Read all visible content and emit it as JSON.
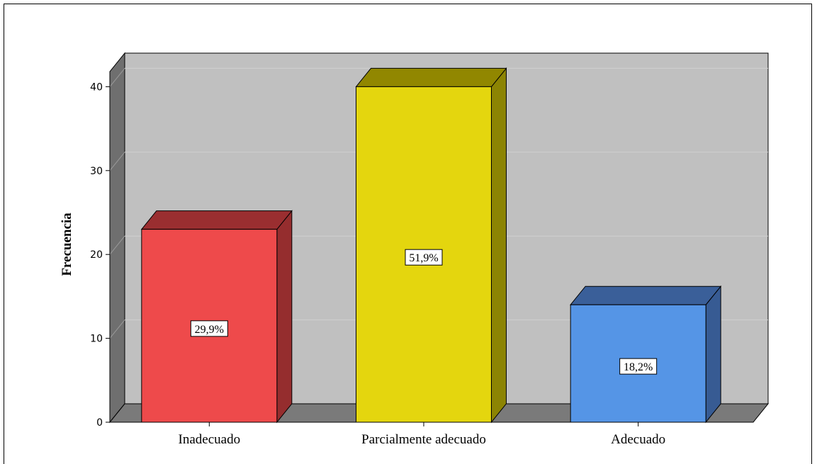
{
  "chart_data": {
    "type": "bar",
    "style": "3d",
    "categories": [
      "Inadecuado",
      "Parcialmente adecuado",
      "Adecuado"
    ],
    "values": [
      23,
      40,
      14
    ],
    "data_labels": [
      "29,9%",
      "51,9%",
      "18,2%"
    ],
    "colors": [
      "#ee4a4b",
      "#e4d60e",
      "#5595e6"
    ],
    "side_colors": [
      "#952d2e",
      "#8c8403",
      "#375b93"
    ],
    "top_colors": [
      "#9a2e30",
      "#918700",
      "#3a5f99"
    ],
    "ylabel": "Frecuencia",
    "xlabel": "",
    "ylim": [
      0,
      44
    ],
    "yticks": [
      0,
      10,
      20,
      30,
      40
    ],
    "grid": true,
    "background": "#c0c0c0",
    "floor_color": "#7a7a7a",
    "wall_side_color": "#6f6f6f"
  }
}
